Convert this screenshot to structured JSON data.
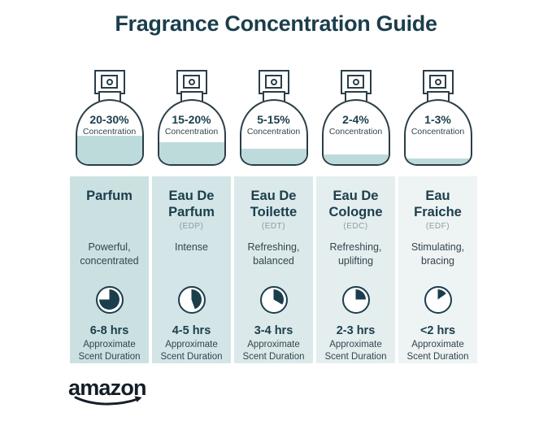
{
  "title": "Fragrance Concentration Guide",
  "brand": {
    "logo_text": "amazon"
  },
  "colors": {
    "dark": "#1b3e4c",
    "outline": "#2b3e48",
    "text": "#33454e",
    "muted": "#8d9ba1",
    "liquid": "#bedbdc",
    "logo": "#141e28"
  },
  "columns": [
    {
      "name": "Parfum",
      "abbr": "",
      "concentration": "20-30%",
      "concentration_label": "Concentration",
      "fill_percent": 45,
      "description": "Powerful, concentrated",
      "duration": "6-8 hrs",
      "duration_label": "Approximate Scent Duration",
      "clock_angle_deg": 270,
      "bg": "#cbe0e1"
    },
    {
      "name": "Eau De Parfum",
      "abbr": "(EDP)",
      "concentration": "15-20%",
      "concentration_label": "Concentration",
      "fill_percent": 34,
      "description": "Intense",
      "duration": "4-5 hrs",
      "duration_label": "Approximate Scent Duration",
      "clock_angle_deg": 160,
      "bg": "#d3e5e6"
    },
    {
      "name": "Eau De Toilette",
      "abbr": "(EDT)",
      "concentration": "5-15%",
      "concentration_label": "Concentration",
      "fill_percent": 25,
      "description": "Refreshing, balanced",
      "duration": "3-4 hrs",
      "duration_label": "Approximate Scent Duration",
      "clock_angle_deg": 120,
      "bg": "#dbe9ea"
    },
    {
      "name": "Eau De Cologne",
      "abbr": "(EDC)",
      "concentration": "2-4%",
      "concentration_label": "Concentration",
      "fill_percent": 16,
      "description": "Refreshing, uplifting",
      "duration": "2-3 hrs",
      "duration_label": "Approximate Scent Duration",
      "clock_angle_deg": 90,
      "bg": "#e4eeef"
    },
    {
      "name": "Eau Fraiche",
      "abbr": "(EDF)",
      "concentration": "1-3%",
      "concentration_label": "Concentration",
      "fill_percent": 9,
      "description": "Stimulating, bracing",
      "duration": "<2 hrs",
      "duration_label": "Approximate Scent Duration",
      "clock_angle_deg": 55,
      "bg": "#eef3f4"
    }
  ]
}
